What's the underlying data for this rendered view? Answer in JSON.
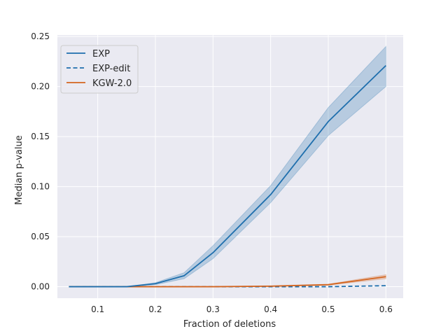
{
  "chart_data": {
    "type": "line",
    "xlabel": "Fraction of deletions",
    "ylabel": "Median p-value",
    "xlim": [
      0.03,
      0.63
    ],
    "ylim": [
      -0.0115,
      0.2515
    ],
    "xticks": [
      0.1,
      0.2,
      0.3,
      0.4,
      0.5,
      0.6
    ],
    "xtick_labels": [
      "0.1",
      "0.2",
      "0.3",
      "0.4",
      "0.5",
      "0.6"
    ],
    "yticks": [
      0.0,
      0.05,
      0.1,
      0.15,
      0.2,
      0.25
    ],
    "ytick_labels": [
      "0.00",
      "0.05",
      "0.10",
      "0.15",
      "0.20",
      "0.25"
    ],
    "grid": true,
    "legend_position": "top-left",
    "x": [
      0.05,
      0.1,
      0.15,
      0.2,
      0.25,
      0.3,
      0.4,
      0.5,
      0.6
    ],
    "series": [
      {
        "name": "EXP",
        "color": "#1f6fad",
        "style": "solid",
        "values": [
          0.0,
          0.0,
          0.0,
          0.003,
          0.011,
          0.034,
          0.092,
          0.165,
          0.221
        ],
        "ci_lower": [
          0.0,
          0.0,
          0.0,
          0.002,
          0.008,
          0.028,
          0.084,
          0.151,
          0.2
        ],
        "ci_upper": [
          0.0,
          0.0,
          0.0,
          0.004,
          0.014,
          0.041,
          0.101,
          0.179,
          0.24
        ]
      },
      {
        "name": "EXP-edit",
        "color": "#1f6fad",
        "style": "dashed",
        "values": [
          0.0,
          0.0,
          0.0,
          0.0,
          0.0,
          0.0,
          0.0,
          0.0,
          0.001
        ]
      },
      {
        "name": "KGW-2.0",
        "color": "#d4651f",
        "style": "solid",
        "values": [
          0.0,
          0.0,
          0.0,
          0.0,
          0.0,
          0.0,
          0.0005,
          0.002,
          0.01
        ],
        "ci_lower": [
          0.0,
          0.0,
          0.0,
          0.0,
          0.0,
          0.0,
          0.0,
          0.0015,
          0.008
        ],
        "ci_upper": [
          0.0,
          0.0,
          0.0,
          0.0,
          0.0,
          0.0,
          0.001,
          0.0025,
          0.012
        ]
      }
    ]
  }
}
